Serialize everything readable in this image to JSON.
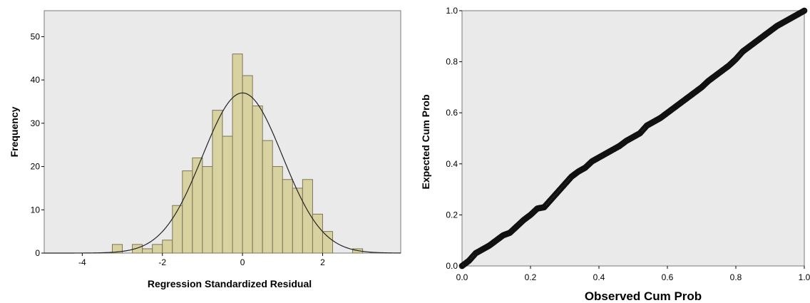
{
  "chart_data": [
    {
      "type": "histogram",
      "xlabel": "Regression Standardized Residual",
      "ylabel": "Frequency",
      "xlim": [
        -4.95,
        3.95
      ],
      "ylim": [
        0,
        56
      ],
      "x_ticks": [
        "-4",
        "-2",
        "0",
        "2"
      ],
      "x_tick_values": [
        -4,
        -2,
        0,
        2
      ],
      "y_ticks": [
        "0",
        "10",
        "20",
        "30",
        "40",
        "50"
      ],
      "y_tick_values": [
        0,
        10,
        20,
        30,
        40,
        50
      ],
      "bin_width": 0.25,
      "bins": [
        {
          "start": -3.25,
          "value": 2
        },
        {
          "start": -3.0,
          "value": 0
        },
        {
          "start": -2.75,
          "value": 2
        },
        {
          "start": -2.5,
          "value": 1
        },
        {
          "start": -2.25,
          "value": 2
        },
        {
          "start": -2.0,
          "value": 3
        },
        {
          "start": -1.75,
          "value": 11
        },
        {
          "start": -1.5,
          "value": 19
        },
        {
          "start": -1.25,
          "value": 22
        },
        {
          "start": -1.0,
          "value": 20
        },
        {
          "start": -0.75,
          "value": 33
        },
        {
          "start": -0.5,
          "value": 27
        },
        {
          "start": -0.25,
          "value": 46
        },
        {
          "start": 0.0,
          "value": 41
        },
        {
          "start": 0.25,
          "value": 34
        },
        {
          "start": 0.5,
          "value": 26
        },
        {
          "start": 0.75,
          "value": 20
        },
        {
          "start": 1.0,
          "value": 17
        },
        {
          "start": 1.25,
          "value": 15
        },
        {
          "start": 1.5,
          "value": 17
        },
        {
          "start": 1.75,
          "value": 9
        },
        {
          "start": 2.0,
          "value": 5
        },
        {
          "start": 2.25,
          "value": 0
        },
        {
          "start": 2.5,
          "value": 0
        },
        {
          "start": 2.75,
          "value": 1
        }
      ],
      "normal_curve": {
        "mean": 0,
        "sd": 0.998,
        "peak": 37
      },
      "bar_color": "#d8d2a0",
      "bar_edge_color": "#7d7457",
      "plot_bg": "#eaeaea"
    },
    {
      "type": "scatter",
      "xlabel": "Observed Cum Prob",
      "ylabel": "Expected Cum Prob",
      "xlim": [
        0,
        1
      ],
      "ylim": [
        0,
        1
      ],
      "x_ticks": [
        "0.0",
        "0.2",
        "0.4",
        "0.6",
        "0.8",
        "1.0"
      ],
      "x_tick_values": [
        0,
        0.2,
        0.4,
        0.6,
        0.8,
        1.0
      ],
      "y_ticks": [
        "0.0",
        "0.2",
        "0.4",
        "0.6",
        "0.8",
        "1.0"
      ],
      "y_tick_values": [
        0,
        0.2,
        0.4,
        0.6,
        0.8,
        1.0
      ],
      "points": [
        [
          0.0,
          0.0
        ],
        [
          0.02,
          0.02
        ],
        [
          0.04,
          0.05
        ],
        [
          0.06,
          0.065
        ],
        [
          0.08,
          0.08
        ],
        [
          0.1,
          0.1
        ],
        [
          0.12,
          0.12
        ],
        [
          0.14,
          0.13
        ],
        [
          0.16,
          0.155
        ],
        [
          0.18,
          0.18
        ],
        [
          0.2,
          0.2
        ],
        [
          0.22,
          0.225
        ],
        [
          0.24,
          0.23
        ],
        [
          0.26,
          0.26
        ],
        [
          0.28,
          0.29
        ],
        [
          0.3,
          0.32
        ],
        [
          0.32,
          0.35
        ],
        [
          0.34,
          0.37
        ],
        [
          0.36,
          0.385
        ],
        [
          0.38,
          0.41
        ],
        [
          0.4,
          0.425
        ],
        [
          0.42,
          0.44
        ],
        [
          0.44,
          0.455
        ],
        [
          0.46,
          0.47
        ],
        [
          0.48,
          0.49
        ],
        [
          0.5,
          0.505
        ],
        [
          0.52,
          0.52
        ],
        [
          0.54,
          0.55
        ],
        [
          0.56,
          0.565
        ],
        [
          0.58,
          0.58
        ],
        [
          0.6,
          0.6
        ],
        [
          0.62,
          0.62
        ],
        [
          0.64,
          0.64
        ],
        [
          0.66,
          0.66
        ],
        [
          0.68,
          0.68
        ],
        [
          0.7,
          0.7
        ],
        [
          0.72,
          0.725
        ],
        [
          0.74,
          0.745
        ],
        [
          0.76,
          0.765
        ],
        [
          0.78,
          0.785
        ],
        [
          0.8,
          0.81
        ],
        [
          0.82,
          0.84
        ],
        [
          0.84,
          0.86
        ],
        [
          0.86,
          0.88
        ],
        [
          0.88,
          0.9
        ],
        [
          0.9,
          0.92
        ],
        [
          0.92,
          0.94
        ],
        [
          0.94,
          0.955
        ],
        [
          0.96,
          0.97
        ],
        [
          0.98,
          0.985
        ],
        [
          1.0,
          1.0
        ]
      ],
      "plot_bg": "#eaeaea"
    }
  ]
}
